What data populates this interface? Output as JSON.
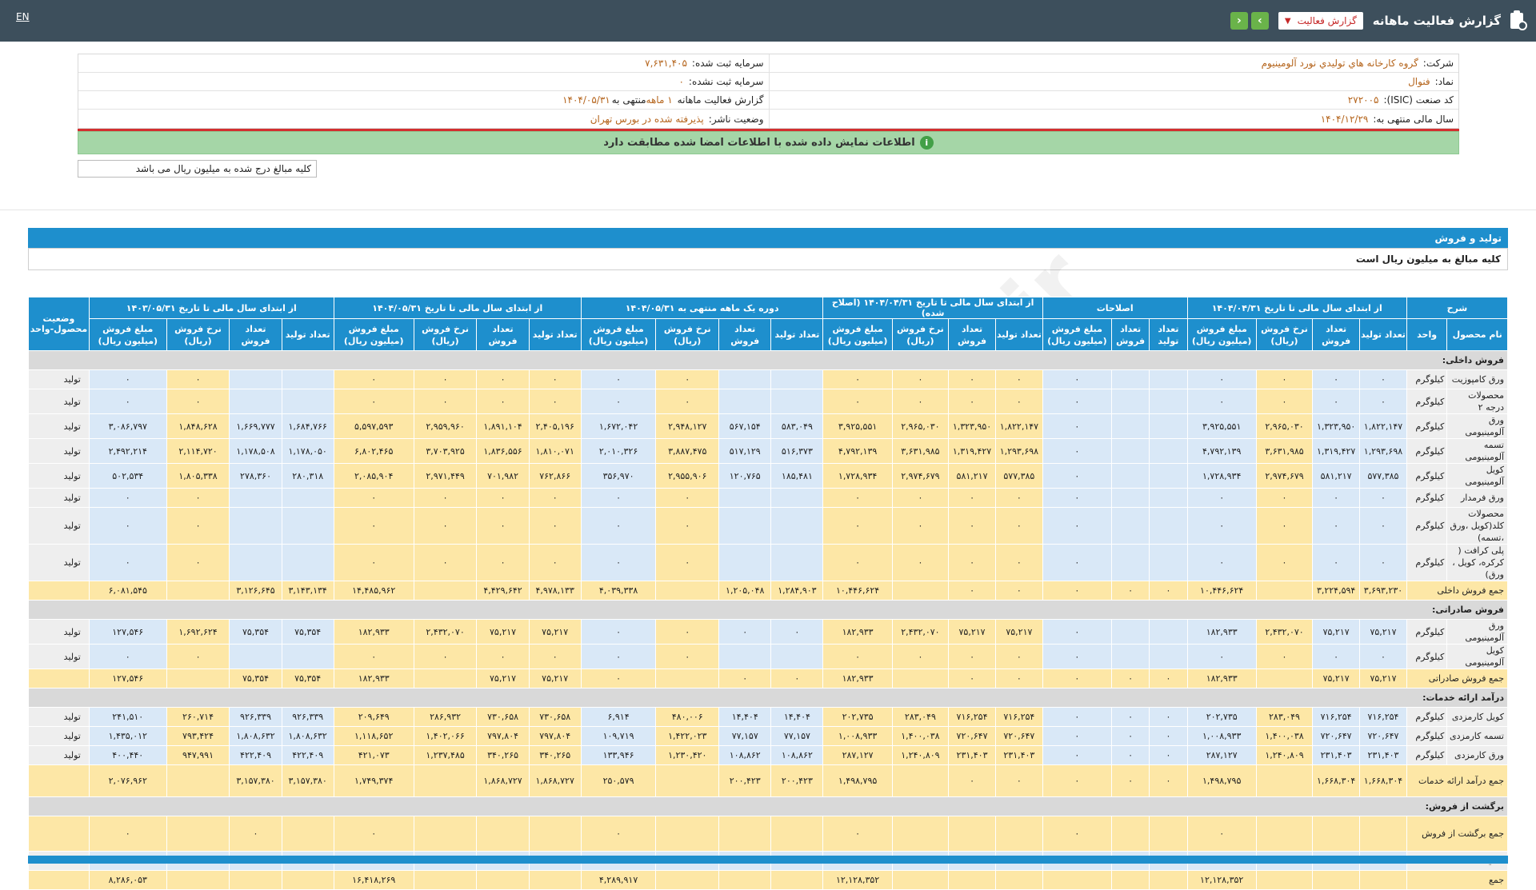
{
  "topbar": {
    "title": "گزارش فعالیت ماهانه",
    "select_value": "گزارش فعالیت",
    "lang": "EN",
    "prev_icon": "chevron-left-icon",
    "next_icon": "chevron-right-icon"
  },
  "info": {
    "company_label": "شرکت:",
    "company_value": "گروه کارخانه هاي توليدي نورد آلومينيوم",
    "capital_label": "سرمایه ثبت شده:",
    "capital_value": "۷,۶۳۱,۴۰۵",
    "symbol_label": "نماد:",
    "symbol_value": "فنوال",
    "unreg_capital_label": "سرمایه ثبت نشده:",
    "unreg_capital_value": "۰",
    "isic_label": "کد صنعت (ISIC):",
    "isic_value": "۲۷۲۰۰۵",
    "report_label": "گزارش فعالیت ماهانه",
    "report_value": "۱ ماهه",
    "report_suffix": "منتهی به",
    "report_date": "۱۴۰۴/۰۵/۳۱",
    "fy_label": "سال مالی منتهی به:",
    "fy_value": "۱۴۰۴/۱۲/۲۹",
    "status_label": "وضعیت ناشر:",
    "status_value": "پذیرفته شده در بورس تهران"
  },
  "notice": "اطلاعات نمایش داده شده با اطلاعات امضا شده مطابقت دارد",
  "amount_note": "کلیه مبالغ درج شده به میلیون ریال می باشد",
  "section": {
    "title": "تولید و فروش",
    "subtitle": "کلیه مبالغ به میلیون ریال است"
  },
  "watermark": "@Codal360.ir",
  "table": {
    "group_headers": [
      "شرح",
      "از ابتدای سال مالی تا تاریخ ۱۴۰۴/۰۴/۳۱",
      "اصلاحات",
      "از ابتدای سال مالی تا تاریخ ۱۴۰۴/۰۴/۳۱ (اصلاح شده)",
      "دوره یک ماهه منتهی به ۱۴۰۴/۰۵/۳۱",
      "از ابتدای سال مالی تا تاریخ ۱۴۰۴/۰۵/۳۱",
      "از ابتدای سال مالی تا تاریخ ۱۴۰۳/۰۵/۳۱",
      "وضعیت محصول-واحد"
    ],
    "sub_headers": {
      "name": "نام محصول",
      "unit": "واحد",
      "g4": [
        "تعداد تولید",
        "تعداد فروش",
        "نرخ فروش (ریال)",
        "مبلغ فروش (میلیون ریال)"
      ],
      "g3": [
        "تعداد تولید",
        "تعداد فروش",
        "مبلغ فروش (میلیون ریال)"
      ]
    },
    "rows": [
      {
        "type": "sect",
        "label": "فروش داخلی:"
      },
      {
        "type": "item",
        "name": "ورق کامپوزیت",
        "unit": "کیلوگرم",
        "st": "تولید",
        "a": [
          "۰",
          "۰",
          "۰",
          "۰"
        ],
        "b": [
          "",
          "",
          "۰"
        ],
        "c": [
          "۰",
          "۰",
          "۰",
          "۰"
        ],
        "d": [
          "",
          "",
          "۰",
          "۰"
        ],
        "e": [
          "۰",
          "۰",
          "۰",
          "۰"
        ],
        "f": [
          "",
          "",
          "۰",
          "۰"
        ]
      },
      {
        "type": "item",
        "name": "محصولات درجه ۲",
        "unit": "کیلوگرم",
        "st": "تولید",
        "a": [
          "۰",
          "۰",
          "۰",
          "۰"
        ],
        "b": [
          "",
          "",
          "۰"
        ],
        "c": [
          "۰",
          "۰",
          "۰",
          "۰"
        ],
        "d": [
          "",
          "",
          "۰",
          "۰"
        ],
        "e": [
          "۰",
          "۰",
          "۰",
          "۰"
        ],
        "f": [
          "",
          "",
          "۰",
          "۰"
        ]
      },
      {
        "type": "item",
        "name": "ورق آلومینیومی",
        "unit": "کیلوگرم",
        "st": "تولید",
        "a": [
          "۱,۸۲۲,۱۴۷",
          "۱,۳۲۳,۹۵۰",
          "۲,۹۶۵,۰۳۰",
          "۳,۹۲۵,۵۵۱"
        ],
        "b": [
          "",
          "",
          "۰"
        ],
        "c": [
          "۱,۸۲۲,۱۴۷",
          "۱,۳۲۳,۹۵۰",
          "۲,۹۶۵,۰۳۰",
          "۳,۹۲۵,۵۵۱"
        ],
        "d": [
          "۵۸۳,۰۴۹",
          "۵۶۷,۱۵۴",
          "۲,۹۴۸,۱۲۷",
          "۱,۶۷۲,۰۴۲"
        ],
        "e": [
          "۲,۴۰۵,۱۹۶",
          "۱,۸۹۱,۱۰۴",
          "۲,۹۵۹,۹۶۰",
          "۵,۵۹۷,۵۹۳"
        ],
        "f": [
          "۱,۶۸۴,۷۶۶",
          "۱,۶۶۹,۷۷۷",
          "۱,۸۴۸,۶۲۸",
          "۳,۰۸۶,۷۹۷"
        ]
      },
      {
        "type": "item",
        "name": "تسمه آلومینیومی",
        "unit": "کیلوگرم",
        "st": "تولید",
        "a": [
          "۱,۲۹۳,۶۹۸",
          "۱,۳۱۹,۴۲۷",
          "۳,۶۳۱,۹۸۵",
          "۴,۷۹۲,۱۳۹"
        ],
        "b": [
          "",
          "",
          "۰"
        ],
        "c": [
          "۱,۲۹۳,۶۹۸",
          "۱,۳۱۹,۴۲۷",
          "۳,۶۳۱,۹۸۵",
          "۴,۷۹۲,۱۳۹"
        ],
        "d": [
          "۵۱۶,۳۷۳",
          "۵۱۷,۱۲۹",
          "۳,۸۸۷,۴۷۵",
          "۲,۰۱۰,۳۲۶"
        ],
        "e": [
          "۱,۸۱۰,۰۷۱",
          "۱,۸۳۶,۵۵۶",
          "۳,۷۰۳,۹۲۵",
          "۶,۸۰۲,۴۶۵"
        ],
        "f": [
          "۱,۱۷۸,۰۵۰",
          "۱,۱۷۸,۵۰۸",
          "۲,۱۱۴,۷۲۰",
          "۲,۴۹۲,۲۱۴"
        ]
      },
      {
        "type": "item",
        "name": "کویل آلومینیومی",
        "unit": "کیلوگرم",
        "st": "تولید",
        "a": [
          "۵۷۷,۳۸۵",
          "۵۸۱,۲۱۷",
          "۲,۹۷۴,۶۷۹",
          "۱,۷۲۸,۹۳۴"
        ],
        "b": [
          "",
          "",
          "۰"
        ],
        "c": [
          "۵۷۷,۳۸۵",
          "۵۸۱,۲۱۷",
          "۲,۹۷۴,۶۷۹",
          "۱,۷۲۸,۹۳۴"
        ],
        "d": [
          "۱۸۵,۴۸۱",
          "۱۲۰,۷۶۵",
          "۲,۹۵۵,۹۰۶",
          "۳۵۶,۹۷۰"
        ],
        "e": [
          "۷۶۲,۸۶۶",
          "۷۰۱,۹۸۲",
          "۲,۹۷۱,۴۴۹",
          "۲,۰۸۵,۹۰۴"
        ],
        "f": [
          "۲۸۰,۳۱۸",
          "۲۷۸,۳۶۰",
          "۱,۸۰۵,۳۳۸",
          "۵۰۲,۵۳۴"
        ]
      },
      {
        "type": "item",
        "name": "ورق فرمدار",
        "unit": "کیلوگرم",
        "st": "تولید",
        "a": [
          "۰",
          "۰",
          "۰",
          "۰"
        ],
        "b": [
          "",
          "",
          "۰"
        ],
        "c": [
          "۰",
          "۰",
          "۰",
          "۰"
        ],
        "d": [
          "",
          "",
          "۰",
          "۰"
        ],
        "e": [
          "۰",
          "۰",
          "۰",
          "۰"
        ],
        "f": [
          "",
          "",
          "۰",
          "۰"
        ]
      },
      {
        "type": "item",
        "tall": true,
        "name": "محصولات کلد(کویل ،ورق ،تسمه)",
        "unit": "کیلوگرم",
        "st": "تولید",
        "a": [
          "۰",
          "۰",
          "۰",
          "۰"
        ],
        "b": [
          "",
          "",
          "۰"
        ],
        "c": [
          "۰",
          "۰",
          "۰",
          "۰"
        ],
        "d": [
          "",
          "",
          "۰",
          "۰"
        ],
        "e": [
          "۰",
          "۰",
          "۰",
          "۰"
        ],
        "f": [
          "",
          "",
          "۰",
          "۰"
        ]
      },
      {
        "type": "item",
        "tall": true,
        "name": "پلی کرافت ( کرکره، کویل ، ورق)",
        "unit": "کیلوگرم",
        "st": "تولید",
        "a": [
          "۰",
          "۰",
          "۰",
          "۰"
        ],
        "b": [
          "",
          "",
          "۰"
        ],
        "c": [
          "۰",
          "۰",
          "۰",
          "۰"
        ],
        "d": [
          "",
          "",
          "۰",
          "۰"
        ],
        "e": [
          "۰",
          "۰",
          "۰",
          "۰"
        ],
        "f": [
          "",
          "",
          "۰",
          "۰"
        ]
      },
      {
        "type": "tot",
        "name": "جمع فروش داخلی",
        "a": [
          "۳,۶۹۳,۲۳۰",
          "۳,۲۲۴,۵۹۴",
          "",
          "۱۰,۴۴۶,۶۲۴"
        ],
        "b": [
          "۰",
          "۰",
          "۰"
        ],
        "c": [
          "۰",
          "۰",
          "",
          "۱۰,۴۴۶,۶۲۴"
        ],
        "d": [
          "۱,۲۸۴,۹۰۳",
          "۱,۲۰۵,۰۴۸",
          "",
          "۴,۰۳۹,۳۳۸"
        ],
        "e": [
          "۴,۹۷۸,۱۳۳",
          "۴,۴۲۹,۶۴۲",
          "",
          "۱۴,۴۸۵,۹۶۲"
        ],
        "f": [
          "۳,۱۴۳,۱۳۴",
          "۳,۱۲۶,۶۴۵",
          "",
          "۶,۰۸۱,۵۴۵"
        ]
      },
      {
        "type": "sect",
        "label": "فروش صادراتی:"
      },
      {
        "type": "item",
        "name": "ورق آلومینیومی",
        "unit": "کیلوگرم",
        "st": "تولید",
        "a": [
          "۷۵,۲۱۷",
          "۷۵,۲۱۷",
          "۲,۴۳۲,۰۷۰",
          "۱۸۲,۹۳۳"
        ],
        "b": [
          "",
          "",
          "۰"
        ],
        "c": [
          "۷۵,۲۱۷",
          "۷۵,۲۱۷",
          "۲,۴۳۲,۰۷۰",
          "۱۸۲,۹۳۳"
        ],
        "d": [
          "۰",
          "۰",
          "۰",
          "۰"
        ],
        "e": [
          "۷۵,۲۱۷",
          "۷۵,۲۱۷",
          "۲,۴۳۲,۰۷۰",
          "۱۸۲,۹۳۳"
        ],
        "f": [
          "۷۵,۳۵۴",
          "۷۵,۳۵۴",
          "۱,۶۹۲,۶۲۴",
          "۱۲۷,۵۴۶"
        ]
      },
      {
        "type": "item",
        "name": "کویل آلومینیومی",
        "unit": "کیلوگرم",
        "st": "تولید",
        "a": [
          "۰",
          "۰",
          "۰",
          "۰"
        ],
        "b": [
          "",
          "",
          "۰"
        ],
        "c": [
          "۰",
          "۰",
          "۰",
          "۰"
        ],
        "d": [
          "",
          "",
          "۰",
          "۰"
        ],
        "e": [
          "۰",
          "۰",
          "۰",
          "۰"
        ],
        "f": [
          "",
          "",
          "۰",
          "۰"
        ]
      },
      {
        "type": "tot",
        "name": "جمع فروش صادراتی",
        "a": [
          "۷۵,۲۱۷",
          "۷۵,۲۱۷",
          "",
          "۱۸۲,۹۳۳"
        ],
        "b": [
          "۰",
          "۰",
          "۰"
        ],
        "c": [
          "۰",
          "۰",
          "",
          "۱۸۲,۹۳۳"
        ],
        "d": [
          "۰",
          "۰",
          "",
          "۰"
        ],
        "e": [
          "۷۵,۲۱۷",
          "۷۵,۲۱۷",
          "",
          "۱۸۲,۹۳۳"
        ],
        "f": [
          "۷۵,۳۵۴",
          "۷۵,۳۵۴",
          "",
          "۱۲۷,۵۴۶"
        ]
      },
      {
        "type": "sect",
        "label": "درآمد ارائه خدمات:"
      },
      {
        "type": "item",
        "name": "کویل کارمزدی",
        "unit": "کیلوگرم",
        "st": "تولید",
        "a": [
          "۷۱۶,۲۵۴",
          "۷۱۶,۲۵۴",
          "۲۸۳,۰۴۹",
          "۲۰۲,۷۳۵"
        ],
        "b": [
          "۰",
          "۰",
          "۰"
        ],
        "c": [
          "۷۱۶,۲۵۴",
          "۷۱۶,۲۵۴",
          "۲۸۳,۰۴۹",
          "۲۰۲,۷۳۵"
        ],
        "d": [
          "۱۴,۴۰۴",
          "۱۴,۴۰۴",
          "۴۸۰,۰۰۶",
          "۶,۹۱۴"
        ],
        "e": [
          "۷۳۰,۶۵۸",
          "۷۳۰,۶۵۸",
          "۲۸۶,۹۳۲",
          "۲۰۹,۶۴۹"
        ],
        "f": [
          "۹۲۶,۳۳۹",
          "۹۲۶,۳۳۹",
          "۲۶۰,۷۱۴",
          "۲۴۱,۵۱۰"
        ]
      },
      {
        "type": "item",
        "name": "تسمه کارمزدی",
        "unit": "کیلوگرم",
        "st": "تولید",
        "a": [
          "۷۲۰,۶۴۷",
          "۷۲۰,۶۴۷",
          "۱,۴۰۰,۰۳۸",
          "۱,۰۰۸,۹۳۳"
        ],
        "b": [
          "۰",
          "۰",
          "۰"
        ],
        "c": [
          "۷۲۰,۶۴۷",
          "۷۲۰,۶۴۷",
          "۱,۴۰۰,۰۳۸",
          "۱,۰۰۸,۹۳۳"
        ],
        "d": [
          "۷۷,۱۵۷",
          "۷۷,۱۵۷",
          "۱,۴۲۲,۰۲۳",
          "۱۰۹,۷۱۹"
        ],
        "e": [
          "۷۹۷,۸۰۴",
          "۷۹۷,۸۰۴",
          "۱,۴۰۲,۰۶۶",
          "۱,۱۱۸,۶۵۲"
        ],
        "f": [
          "۱,۸۰۸,۶۳۲",
          "۱,۸۰۸,۶۳۲",
          "۷۹۳,۴۲۴",
          "۱,۴۳۵,۰۱۲"
        ]
      },
      {
        "type": "item",
        "name": "ورق کارمزدی",
        "unit": "کیلوگرم",
        "st": "تولید",
        "a": [
          "۲۳۱,۴۰۳",
          "۲۳۱,۴۰۳",
          "۱,۲۴۰,۸۰۹",
          "۲۸۷,۱۲۷"
        ],
        "b": [
          "۰",
          "۰",
          "۰"
        ],
        "c": [
          "۲۳۱,۴۰۳",
          "۲۳۱,۴۰۳",
          "۱,۲۴۰,۸۰۹",
          "۲۸۷,۱۲۷"
        ],
        "d": [
          "۱۰۸,۸۶۲",
          "۱۰۸,۸۶۲",
          "۱,۲۳۰,۴۲۰",
          "۱۳۳,۹۴۶"
        ],
        "e": [
          "۳۴۰,۲۶۵",
          "۳۴۰,۲۶۵",
          "۱,۲۳۷,۴۸۵",
          "۴۲۱,۰۷۳"
        ],
        "f": [
          "۴۲۲,۴۰۹",
          "۴۲۲,۴۰۹",
          "۹۴۷,۹۹۱",
          "۴۰۰,۴۴۰"
        ]
      },
      {
        "type": "tot",
        "tall": true,
        "name": "جمع درآمد ارائه خدمات",
        "a": [
          "۱,۶۶۸,۳۰۴",
          "۱,۶۶۸,۳۰۴",
          "",
          "۱,۴۹۸,۷۹۵"
        ],
        "b": [
          "۰",
          "۰",
          "۰"
        ],
        "c": [
          "۰",
          "۰",
          "",
          "۱,۴۹۸,۷۹۵"
        ],
        "d": [
          "۲۰۰,۴۲۳",
          "۲۰۰,۴۲۳",
          "",
          "۲۵۰,۵۷۹"
        ],
        "e": [
          "۱,۸۶۸,۷۲۷",
          "۱,۸۶۸,۷۲۷",
          "",
          "۱,۷۴۹,۳۷۴"
        ],
        "f": [
          "۳,۱۵۷,۳۸۰",
          "۳,۱۵۷,۳۸۰",
          "",
          "۲,۰۷۶,۹۶۲"
        ]
      },
      {
        "type": "sect",
        "label": "برگشت از فروش:"
      },
      {
        "type": "tot",
        "tall2": true,
        "name": "جمع برگشت از فروش",
        "a": [
          "",
          "",
          "",
          "۰"
        ],
        "b": [
          "",
          "",
          "۰"
        ],
        "c": [
          "",
          "",
          "",
          "۰"
        ],
        "d": [
          "",
          "",
          "",
          "۰"
        ],
        "e": [
          "",
          "",
          "",
          "۰"
        ],
        "f": [
          "",
          "۰",
          "",
          "۰"
        ]
      },
      {
        "type": "disc",
        "name": "تخفیفات",
        "a": [
          "",
          "",
          "",
          "۰"
        ],
        "b": [
          "",
          "",
          "۰"
        ],
        "c": [
          "",
          "",
          "",
          "۰"
        ],
        "d": [
          "",
          "",
          "",
          "۰"
        ],
        "e": [
          "",
          "",
          "",
          "۰"
        ],
        "f": [
          "",
          "",
          "",
          "۰"
        ]
      },
      {
        "type": "tot",
        "name": "جمع",
        "a": [
          "",
          "",
          "",
          "۱۲,۱۲۸,۳۵۲"
        ],
        "b": [
          "",
          "",
          ""
        ],
        "c": [
          "",
          "",
          "",
          "۱۲,۱۲۸,۳۵۲"
        ],
        "d": [
          "",
          "",
          "",
          "۴,۲۸۹,۹۱۷"
        ],
        "e": [
          "",
          "",
          "",
          "۱۶,۴۱۸,۲۶۹"
        ],
        "f": [
          "",
          "",
          "",
          "۸,۲۸۶,۰۵۳"
        ]
      }
    ]
  }
}
